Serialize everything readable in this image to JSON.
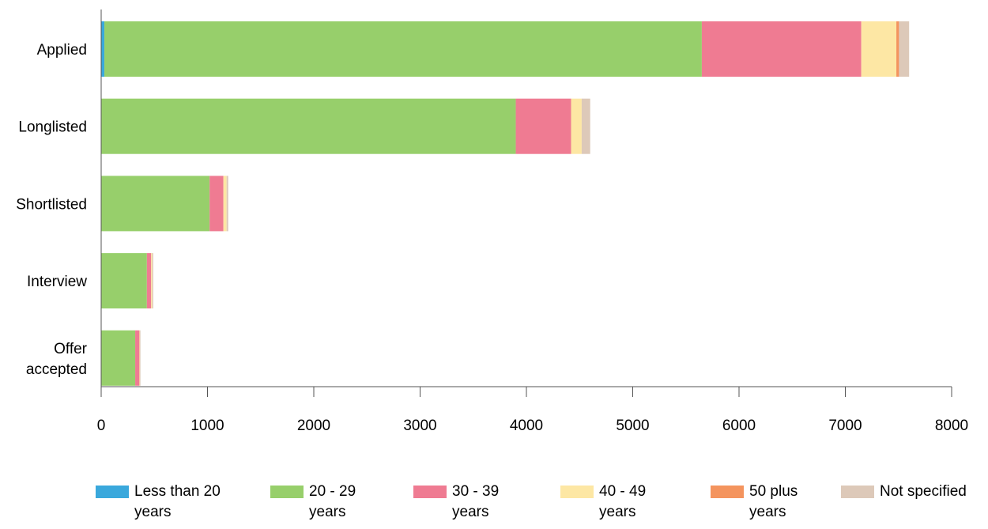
{
  "chart_data": {
    "type": "bar",
    "orientation": "horizontal",
    "stacked": true,
    "categories": [
      "Applied",
      "Longlisted",
      "Shortlisted",
      "Interview",
      "Offer\naccepted"
    ],
    "series": [
      {
        "name": "Less than 20\nyears",
        "color": "#3aa8dc",
        "values": [
          30,
          0,
          0,
          0,
          0
        ]
      },
      {
        "name": "20 - 29\nyears",
        "color": "#97cf6b",
        "values": [
          5620,
          3900,
          1020,
          430,
          320
        ]
      },
      {
        "name": "30 - 39\nyears",
        "color": "#ef7b92",
        "values": [
          1500,
          520,
          130,
          40,
          40
        ]
      },
      {
        "name": "40 - 49\nyears",
        "color": "#fde7a4",
        "values": [
          330,
          100,
          30,
          10,
          5
        ]
      },
      {
        "name": "50 plus\nyears",
        "color": "#f4945e",
        "values": [
          25,
          0,
          0,
          0,
          0
        ]
      },
      {
        "name": "Not specified",
        "color": "#ddc9b9",
        "values": [
          95,
          80,
          15,
          10,
          5
        ]
      }
    ],
    "xlim": [
      0,
      8000
    ],
    "xticks": [
      "0",
      "1000",
      "2000",
      "3000",
      "4000",
      "5000",
      "6000",
      "7000",
      "8000"
    ],
    "xlabel": "",
    "ylabel": "",
    "title": "",
    "grid": false,
    "legend_position": "bottom"
  }
}
